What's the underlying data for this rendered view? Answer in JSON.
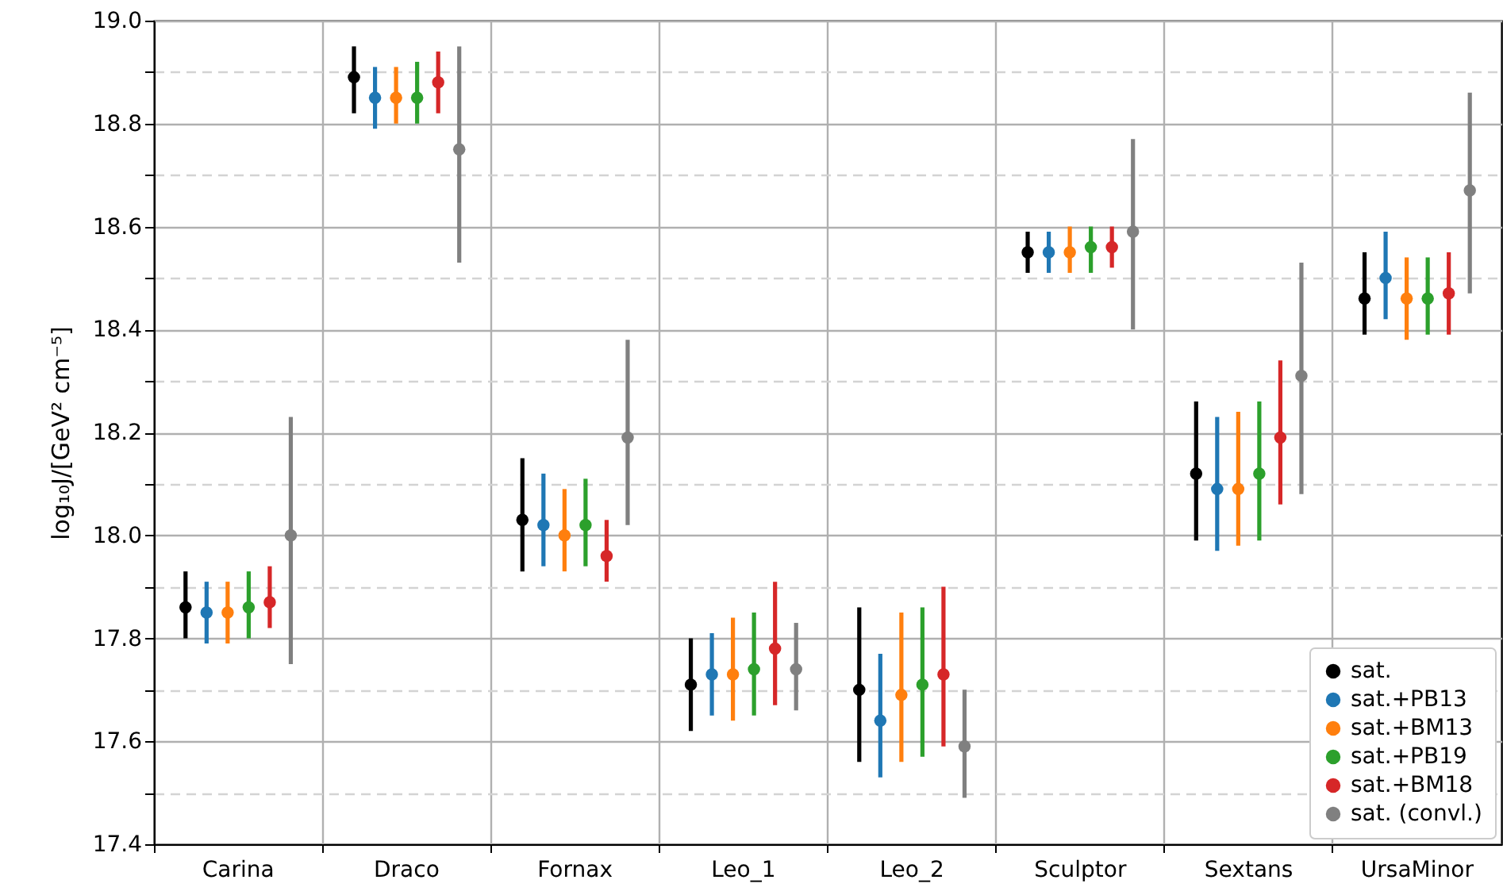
{
  "chart_data": {
    "type": "scatter",
    "ylabel": "log₁₀J/[GeV² cm⁻⁵]",
    "categories": [
      "Carina",
      "Draco",
      "Fornax",
      "Leo_1",
      "Leo_2",
      "Sculptor",
      "Sextans",
      "UrsaMinor"
    ],
    "ylim": [
      17.4,
      19.0
    ],
    "yticks": [
      17.4,
      {
        "value": 17.5,
        "label": null
      },
      17.6,
      {
        "value": 17.7,
        "label": null
      },
      17.8,
      {
        "value": 17.9,
        "label": null
      },
      {
        "value": 18.0,
        "label": "18.0"
      },
      {
        "value": 18.1,
        "label": null
      },
      18.2,
      {
        "value": 18.3,
        "label": null
      },
      18.4,
      {
        "value": 18.5,
        "label": null
      },
      18.6,
      {
        "value": 18.7,
        "label": null
      },
      18.8,
      {
        "value": 18.9,
        "label": null
      },
      {
        "value": 19.0,
        "label": "19.0"
      }
    ],
    "grid": true,
    "legend": "bottom right",
    "marker": "circle",
    "series": [
      {
        "name": "sat.",
        "color": "#000000",
        "values": [
          17.86,
          18.89,
          18.03,
          17.71,
          17.7,
          18.55,
          18.12,
          18.46
        ],
        "errors": [
          [
            17.8,
            17.93
          ],
          [
            18.82,
            18.95
          ],
          [
            17.93,
            18.15
          ],
          [
            17.62,
            17.8
          ],
          [
            17.56,
            17.86
          ],
          [
            18.51,
            18.59
          ],
          [
            17.99,
            18.26
          ],
          [
            18.39,
            18.55
          ]
        ]
      },
      {
        "name": "sat.+PB13",
        "color": "#1f77b4",
        "values": [
          17.85,
          18.85,
          18.02,
          17.73,
          17.64,
          18.55,
          18.09,
          18.5
        ],
        "errors": [
          [
            17.79,
            17.91
          ],
          [
            18.79,
            18.91
          ],
          [
            17.94,
            18.12
          ],
          [
            17.65,
            17.81
          ],
          [
            17.53,
            17.77
          ],
          [
            18.51,
            18.59
          ],
          [
            17.97,
            18.23
          ],
          [
            18.42,
            18.59
          ]
        ]
      },
      {
        "name": "sat.+BM13",
        "color": "#ff7f0e",
        "values": [
          17.85,
          18.85,
          18.0,
          17.73,
          17.69,
          18.55,
          18.09,
          18.46
        ],
        "errors": [
          [
            17.79,
            17.91
          ],
          [
            18.8,
            18.91
          ],
          [
            17.93,
            18.09
          ],
          [
            17.64,
            17.84
          ],
          [
            17.56,
            17.85
          ],
          [
            18.51,
            18.6
          ],
          [
            17.98,
            18.24
          ],
          [
            18.38,
            18.54
          ]
        ]
      },
      {
        "name": "sat.+PB19",
        "color": "#2ca02c",
        "values": [
          17.86,
          18.85,
          18.02,
          17.74,
          17.71,
          18.56,
          18.12,
          18.46
        ],
        "errors": [
          [
            17.8,
            17.93
          ],
          [
            18.8,
            18.92
          ],
          [
            17.94,
            18.11
          ],
          [
            17.65,
            17.85
          ],
          [
            17.57,
            17.86
          ],
          [
            18.51,
            18.6
          ],
          [
            17.99,
            18.26
          ],
          [
            18.39,
            18.54
          ]
        ]
      },
      {
        "name": "sat.+BM18",
        "color": "#d62728",
        "values": [
          17.87,
          18.88,
          17.96,
          17.78,
          17.73,
          18.56,
          18.19,
          18.47
        ],
        "errors": [
          [
            17.82,
            17.94
          ],
          [
            18.82,
            18.94
          ],
          [
            17.91,
            18.03
          ],
          [
            17.67,
            17.91
          ],
          [
            17.59,
            17.9
          ],
          [
            18.52,
            18.6
          ],
          [
            18.06,
            18.34
          ],
          [
            18.39,
            18.55
          ]
        ]
      },
      {
        "name": "sat. (convl.)",
        "color": "#808080",
        "values": [
          18.0,
          18.75,
          18.19,
          17.74,
          17.59,
          18.59,
          18.31,
          18.67
        ],
        "errors": [
          [
            17.75,
            18.23
          ],
          [
            18.53,
            18.95
          ],
          [
            18.02,
            18.38
          ],
          [
            17.66,
            17.83
          ],
          [
            17.49,
            17.7
          ],
          [
            18.4,
            18.77
          ],
          [
            18.08,
            18.53
          ],
          [
            18.47,
            18.86
          ]
        ]
      }
    ]
  }
}
